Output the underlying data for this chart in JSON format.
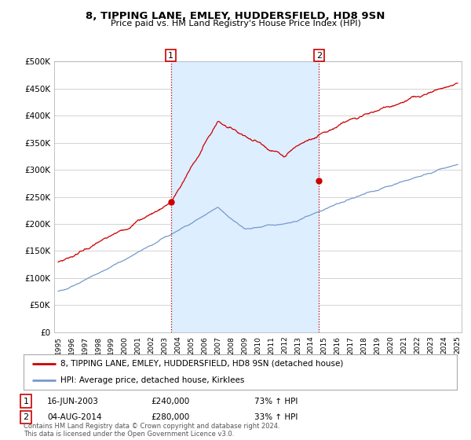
{
  "title": "8, TIPPING LANE, EMLEY, HUDDERSFIELD, HD8 9SN",
  "subtitle": "Price paid vs. HM Land Registry's House Price Index (HPI)",
  "ylabel_ticks": [
    "£0",
    "£50K",
    "£100K",
    "£150K",
    "£200K",
    "£250K",
    "£300K",
    "£350K",
    "£400K",
    "£450K",
    "£500K"
  ],
  "ytick_values": [
    0,
    50000,
    100000,
    150000,
    200000,
    250000,
    300000,
    350000,
    400000,
    450000,
    500000
  ],
  "ylim": [
    0,
    500000
  ],
  "xlim_left": 1994.7,
  "xlim_right": 2025.3,
  "background_color": "#ffffff",
  "plot_bg_color": "#ffffff",
  "grid_color": "#cccccc",
  "shade_color": "#ddeeff",
  "red_line_color": "#cc0000",
  "blue_line_color": "#7799cc",
  "legend_entry1": "8, TIPPING LANE, EMLEY, HUDDERSFIELD, HD8 9SN (detached house)",
  "legend_entry2": "HPI: Average price, detached house, Kirklees",
  "sale1_date": "16-JUN-2003",
  "sale1_price": "£240,000",
  "sale1_hpi": "73% ↑ HPI",
  "sale2_date": "04-AUG-2014",
  "sale2_price": "£280,000",
  "sale2_hpi": "33% ↑ HPI",
  "footer": "Contains HM Land Registry data © Crown copyright and database right 2024.\nThis data is licensed under the Open Government Licence v3.0.",
  "sale1_year": 2003.46,
  "sale2_year": 2014.59,
  "marker1_red_y": 240000,
  "marker2_red_y": 280000
}
